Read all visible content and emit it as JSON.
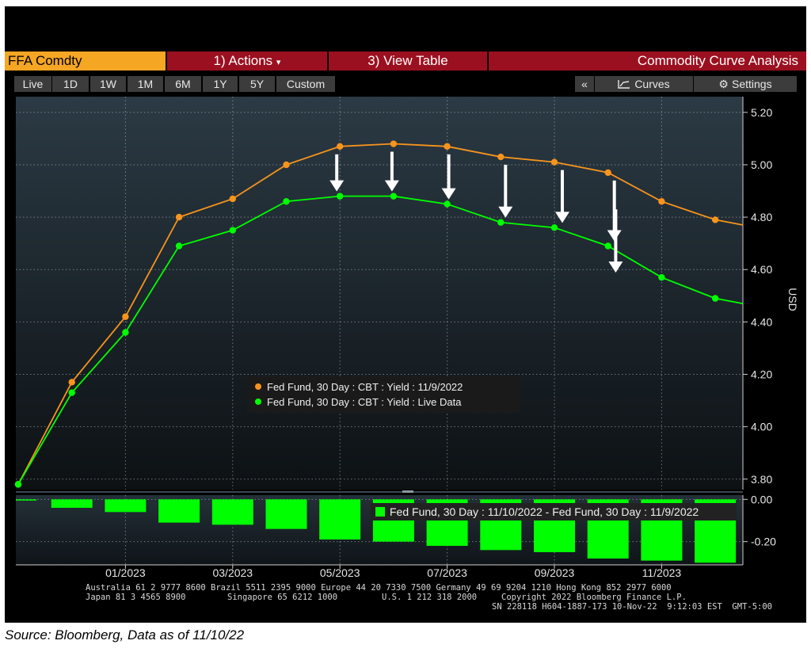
{
  "command_bar": {
    "ticker": "FFA Comdty",
    "actions": "1) Actions",
    "actions_caret": "▾",
    "view_table": "3) View Table",
    "analysis_title": "Commodity Curve Analysis"
  },
  "range_tabs": [
    "Live",
    "1D",
    "1W",
    "1M",
    "6M",
    "1Y",
    "5Y",
    "Custom"
  ],
  "active_range": "1D",
  "tools": {
    "collapse": "«",
    "curves_label": "Curves",
    "settings_label": "Settings"
  },
  "colors": {
    "series_1": "#f7941d",
    "series_2": "#00ff00",
    "diff_bars": "#00ff00",
    "accent_red": "#9b1020",
    "ticker_orange": "#f5a623"
  },
  "chart_data": [
    {
      "type": "line",
      "x": [
        "11/2022",
        "12/2022",
        "01/2023",
        "02/2023",
        "03/2023",
        "04/2023",
        "05/2023",
        "06/2023",
        "07/2023",
        "08/2023",
        "09/2023",
        "10/2023",
        "11/2023",
        "12/2023"
      ],
      "x_tick_labels": [
        "01/2023",
        "03/2023",
        "05/2023",
        "07/2023",
        "09/2023",
        "11/2023"
      ],
      "series": [
        {
          "name": "Fed Fund, 30 Day : CBT : Yield : 11/9/2022",
          "values": [
            3.78,
            4.17,
            4.42,
            4.8,
            4.87,
            5.0,
            5.07,
            5.08,
            5.07,
            5.03,
            5.01,
            4.97,
            4.86,
            4.79
          ]
        },
        {
          "name": "Fed Fund, 30 Day : CBT : Yield : Live Data",
          "values": [
            3.78,
            4.13,
            4.36,
            4.69,
            4.75,
            4.86,
            4.88,
            4.88,
            4.85,
            4.78,
            4.76,
            4.69,
            4.57,
            4.49
          ]
        }
      ],
      "ylabel": "USD",
      "ylim": [
        3.76,
        5.26
      ],
      "y_ticks": [
        "3.80",
        "4.00",
        "4.20",
        "4.40",
        "4.60",
        "4.80",
        "5.00",
        "5.20"
      ],
      "grid": true,
      "legend_position": "center-bottom",
      "annotations": "white down arrows between curves"
    },
    {
      "type": "bar",
      "series_name": "Fed Fund, 30 Day : 11/10/2022 - Fed Fund, 30 Day : 11/9/2022",
      "values": [
        0.0,
        -0.04,
        -0.06,
        -0.11,
        -0.12,
        -0.14,
        -0.19,
        -0.2,
        -0.22,
        -0.24,
        -0.25,
        -0.28,
        -0.29,
        -0.3
      ],
      "ylim": [
        -0.31,
        0.02
      ],
      "y_ticks": [
        "0.00",
        "-0.20"
      ]
    }
  ],
  "footer": {
    "line1": "Australia 61 2 9777 8600 Brazil 5511 2395 9000 Europe 44 20 7330 7500 Germany 49 69 9204 1210 Hong Kong 852 2977 6000",
    "line2a": "Japan 81 3 4565 8900",
    "line2b": "Singapore 65 6212 1000",
    "line2c": "U.S. 1 212 318 2000",
    "line2d": "Copyright 2022 Bloomberg Finance L.P.",
    "line3": "SN 228118 H604-1887-173 10-Nov-22  9:12:03 EST  GMT-5:00"
  },
  "source_note": "Source: Bloomberg, Data as of 11/10/22"
}
